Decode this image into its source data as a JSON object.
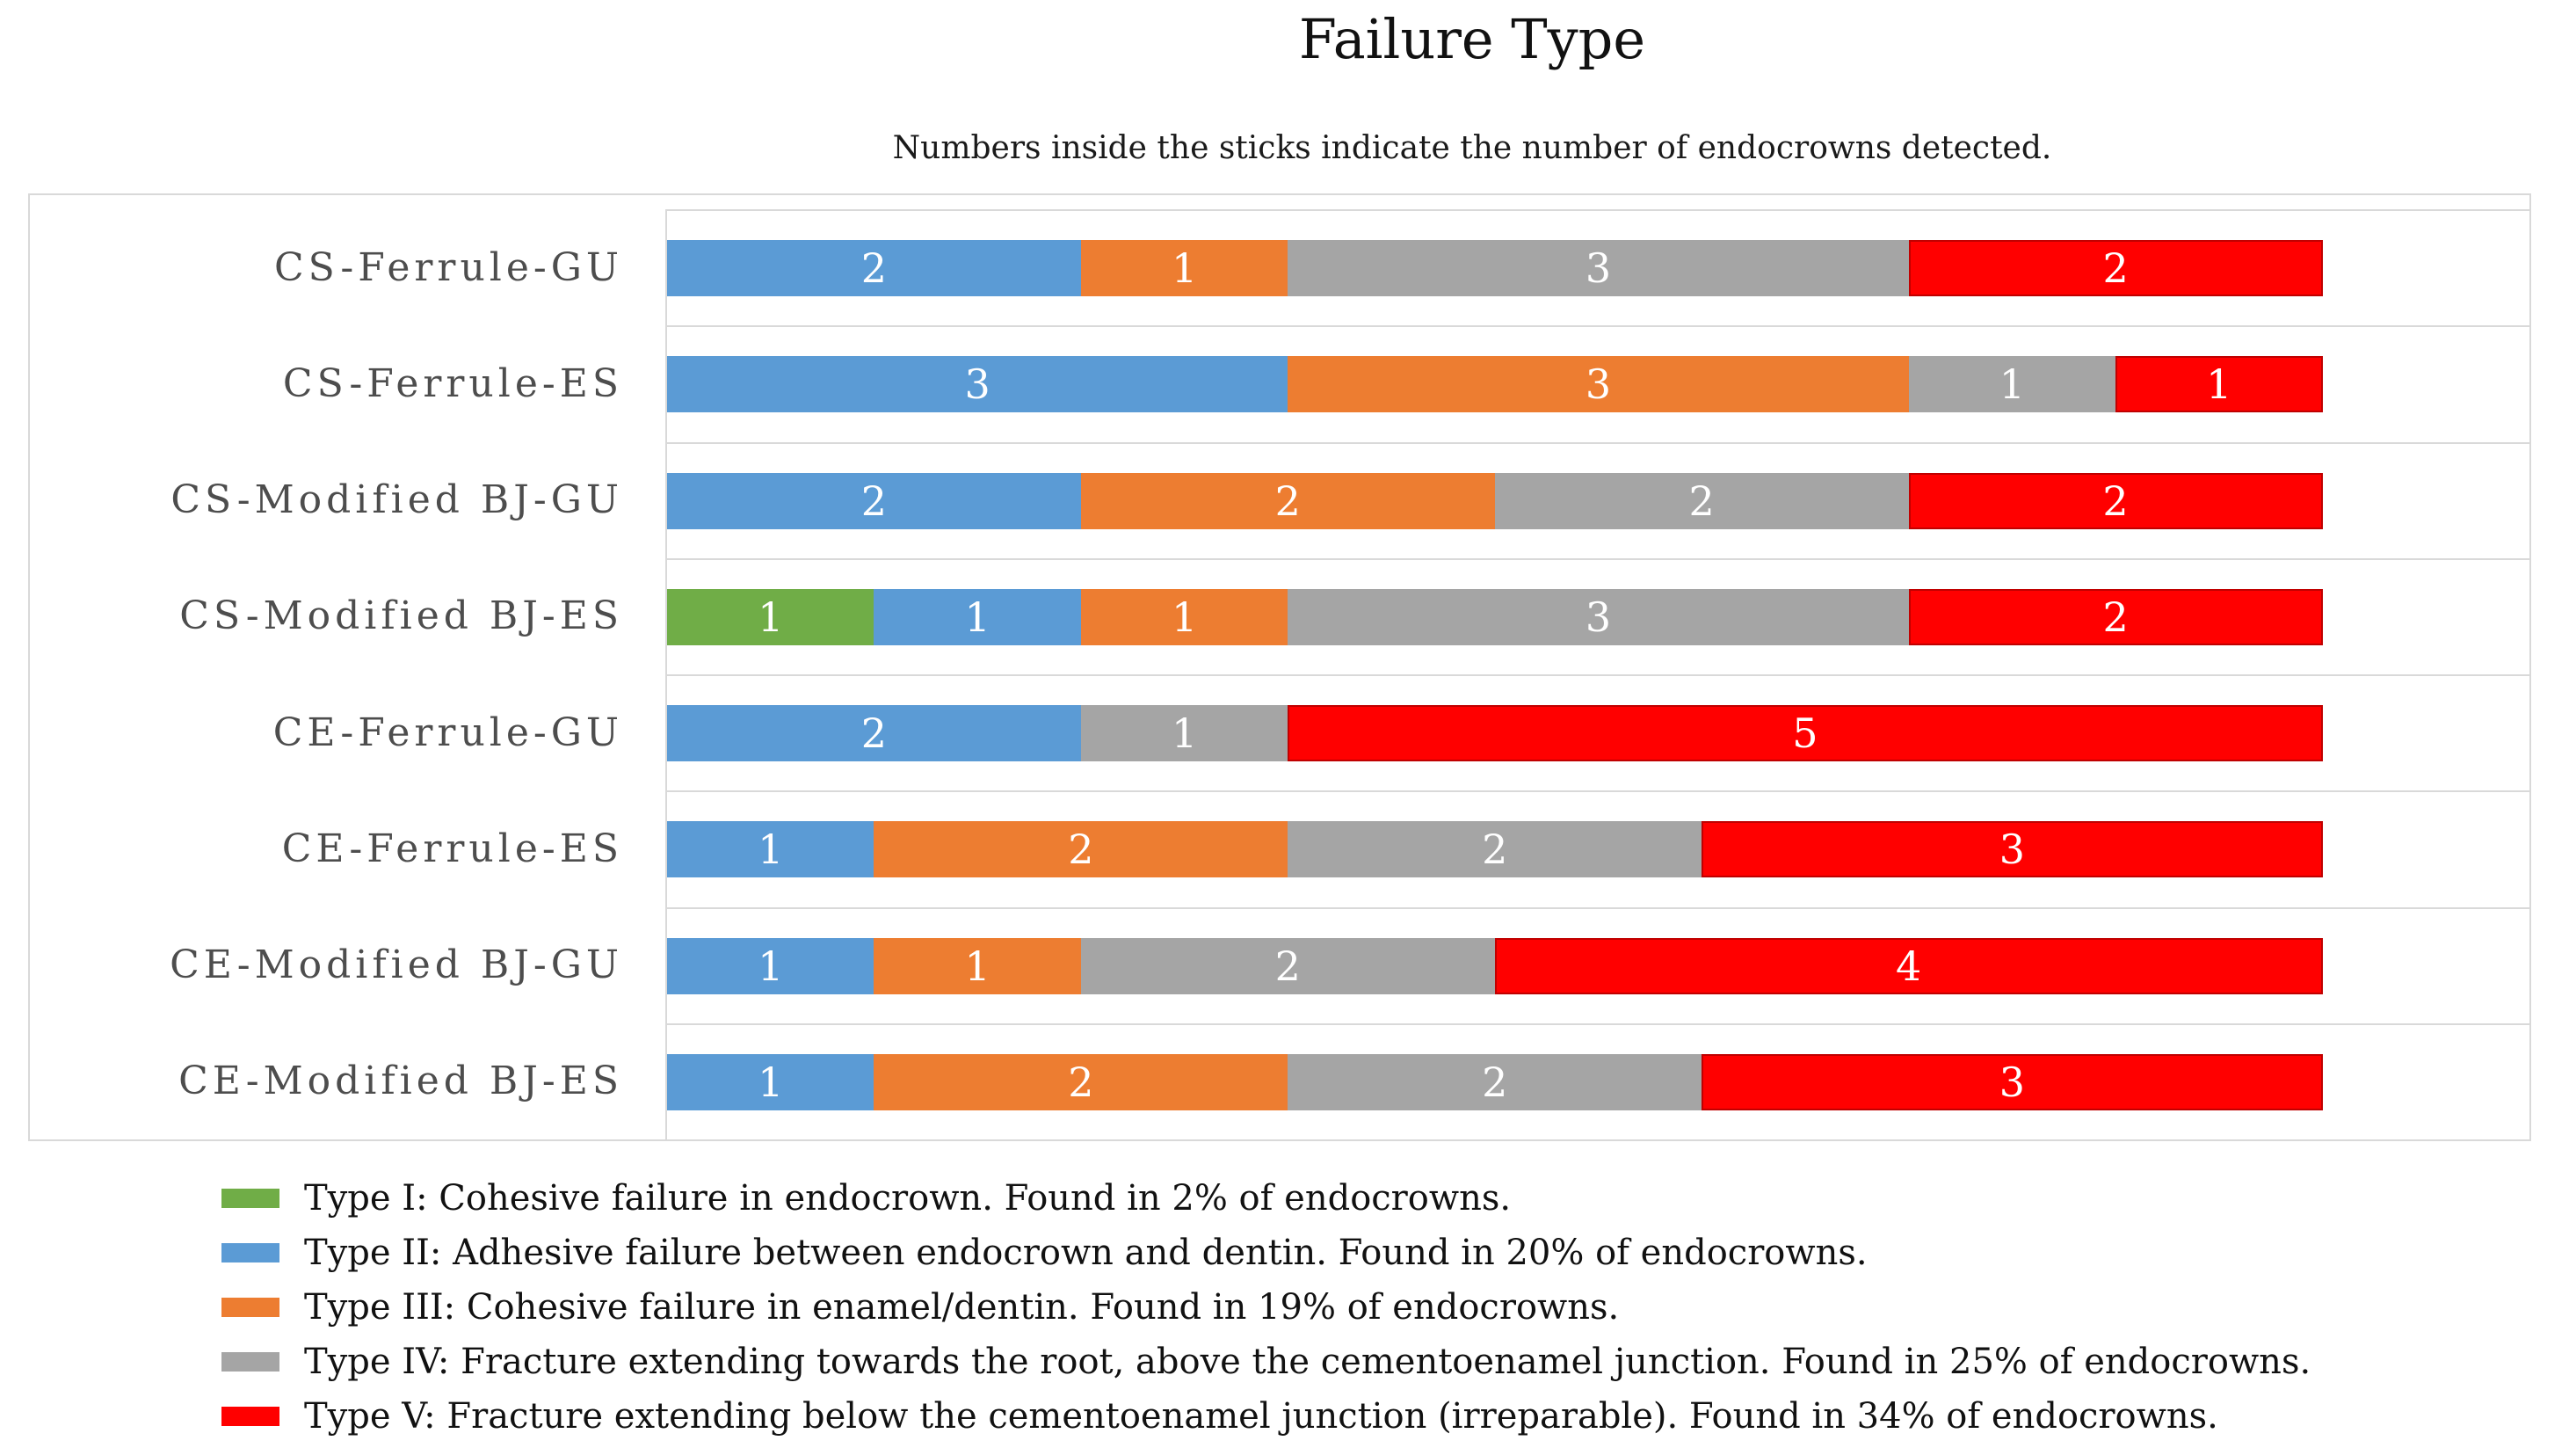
{
  "title": "Failure Type",
  "subtitle": "Numbers inside the sticks indicate the number of endocrowns detected.",
  "chart_data": {
    "type": "bar",
    "orientation": "horizontal",
    "stacked": true,
    "title": "Failure Type",
    "subtitle": "Numbers inside the sticks indicate the number of endocrowns detected.",
    "xlabel": "",
    "ylabel": "",
    "xlim": [
      0,
      9
    ],
    "bar_total": 8,
    "grid": "category boundary lines, light gray",
    "legend_position": "bottom-left",
    "value_labels": "white numerals centered inside each segment",
    "categories": [
      "CS-Ferrule-GU",
      "CS-Ferrule-ES",
      "CS-Modified BJ-GU",
      "CS-Modified BJ-ES",
      "CE-Ferrule-GU",
      "CE-Ferrule-ES",
      "CE-Modified BJ-GU",
      "CE-Modified BJ-ES"
    ],
    "series": [
      {
        "name": "Type I",
        "color": "#70AD47",
        "values": [
          0,
          0,
          0,
          1,
          0,
          0,
          0,
          0
        ]
      },
      {
        "name": "Type II",
        "color": "#5B9BD5",
        "values": [
          2,
          3,
          2,
          1,
          2,
          1,
          1,
          1
        ]
      },
      {
        "name": "Type III",
        "color": "#ED7D31",
        "values": [
          1,
          3,
          2,
          1,
          0,
          2,
          1,
          2
        ]
      },
      {
        "name": "Type IV",
        "color": "#A5A5A5",
        "values": [
          3,
          1,
          2,
          3,
          1,
          2,
          2,
          2
        ]
      },
      {
        "name": "Type V",
        "color": "#FF0000",
        "border_color": "#C00000",
        "values": [
          2,
          1,
          2,
          2,
          5,
          3,
          4,
          3
        ]
      }
    ]
  },
  "legend": {
    "items": [
      {
        "label": "Type I: Cohesive failure in endocrown. Found in 2% of endocrowns.",
        "color": "#70AD47"
      },
      {
        "label": "Type II: Adhesive failure between endocrown and dentin. Found in 20% of endocrowns.",
        "color": "#5B9BD5"
      },
      {
        "label": "Type III: Cohesive failure in enamel/dentin. Found in 19% of endocrowns.",
        "color": "#ED7D31"
      },
      {
        "label": "Type IV: Fracture extending towards the root, above the cementoenamel junction. Found in 25% of endocrowns.",
        "color": "#A5A5A5"
      },
      {
        "label": "Type V: Fracture extending below the cementoenamel junction (irreparable). Found in 34% of endocrowns.",
        "color": "#FF0000"
      }
    ]
  },
  "colors": {
    "gridline": "#D9D9D9",
    "chart_border": "#D9D9D9",
    "category_label": "#4D4D4D",
    "value_label": "#FFFFFF",
    "text": "#111111"
  }
}
